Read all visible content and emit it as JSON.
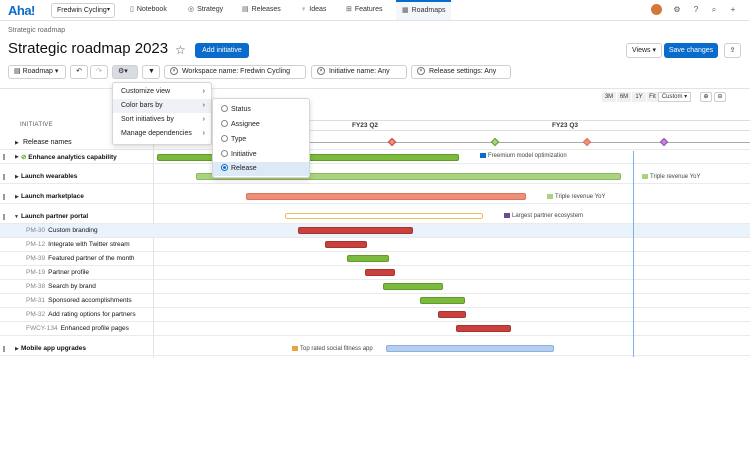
{
  "nav": {
    "logo": "Aha!",
    "workspace": "Fredwin Cycling",
    "tabs": [
      {
        "label": "Notebook",
        "icon": "▯"
      },
      {
        "label": "Strategy",
        "icon": "◎"
      },
      {
        "label": "Releases",
        "icon": "▤"
      },
      {
        "label": "Ideas",
        "icon": "♀"
      },
      {
        "label": "Features",
        "icon": "⊞"
      },
      {
        "label": "Roadmaps",
        "icon": "▦"
      }
    ]
  },
  "header": {
    "breadcrumb": "Strategic roadmap",
    "title": "Strategic roadmap 2023",
    "add_initiative": "Add initiative",
    "views": "Views",
    "save_changes": "Save changes"
  },
  "toolbar": {
    "roadmap": "Roadmap",
    "filters": [
      "Workspace name: Fredwin Cycling",
      "Initiative name: Any",
      "Release settings: Any"
    ]
  },
  "zoom": {
    "options": [
      "3M",
      "6M",
      "1Y",
      "Fit"
    ],
    "custom": "Custom",
    "zoom_in": "⊕",
    "zoom_out": "⊖"
  },
  "timeline": {
    "column_header": "INITIATIVE",
    "quarters": [
      "FY23 Q2",
      "FY23 Q3"
    ]
  },
  "rows": {
    "release_names": "Release names",
    "enhance": "Enhance analytics capability",
    "enhance_flag": "Freemium model optimization",
    "wearables": "Launch wearables",
    "wearables_flag": "Triple revenue YoY",
    "marketplace": "Launch marketplace",
    "marketplace_flag": "Triple revenue YoY",
    "partner_portal": "Launch partner portal",
    "partner_flag": "Largest partner ecosystem",
    "features": [
      {
        "id": "PM-30",
        "name": "Custom branding"
      },
      {
        "id": "PM-12",
        "name": "Integrate with Twitter stream"
      },
      {
        "id": "PM-39",
        "name": "Featured partner of the month"
      },
      {
        "id": "PM-19",
        "name": "Partner profile"
      },
      {
        "id": "PM-38",
        "name": "Search by brand"
      },
      {
        "id": "PM-31",
        "name": "Sponsored accomplishments"
      },
      {
        "id": "PM-32",
        "name": "Add rating options for partners"
      },
      {
        "id": "FWCY-134",
        "name": "Enhanced profile pages"
      }
    ],
    "mobile": "Mobile app upgrades",
    "mobile_flag": "Top rated social fitness app"
  },
  "settings_menu": {
    "items": [
      "Customize view",
      "Color bars by",
      "Sort initiatives by",
      "Manage dependencies"
    ]
  },
  "color_menu": {
    "options": [
      "Status",
      "Assignee",
      "Type",
      "Initiative",
      "Release"
    ],
    "selected": "Release"
  },
  "colors": {
    "accent": "#0b6bcb",
    "green": "#7cba3d",
    "red": "#c9403d",
    "salmon": "#ef8f79",
    "blue": "#b6cfef"
  }
}
